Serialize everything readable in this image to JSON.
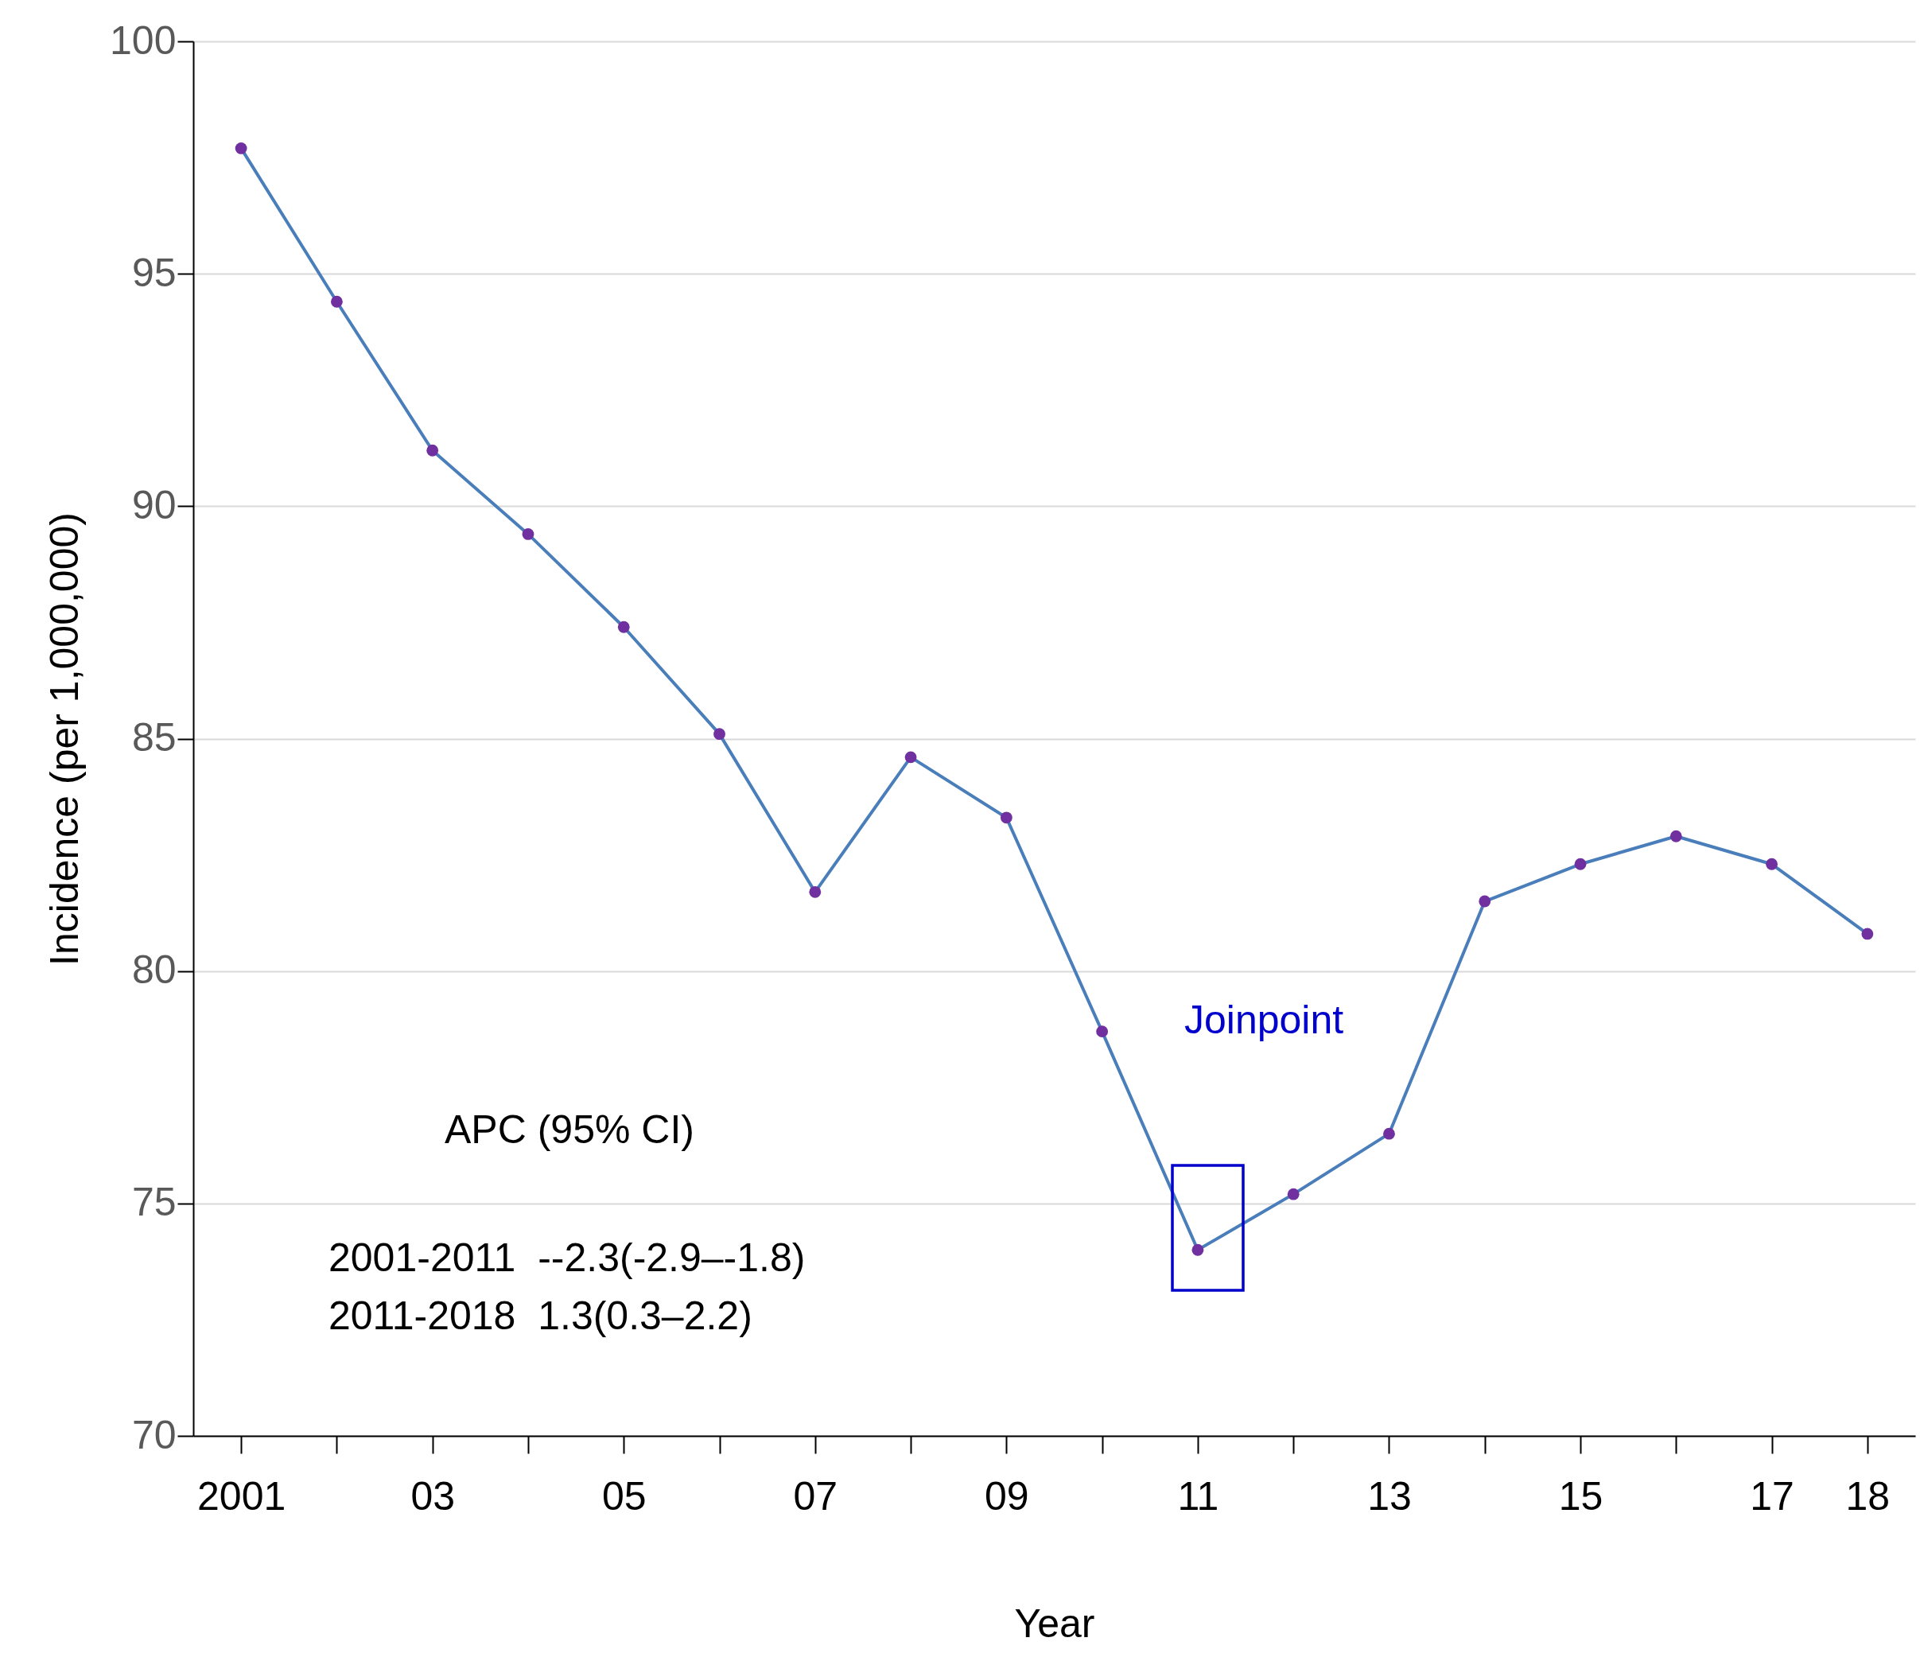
{
  "chart_data": {
    "type": "line",
    "xlabel": "Year",
    "ylabel": "Incidence (per 1,000,000)",
    "categories": [
      "2001",
      null,
      "03",
      null,
      "05",
      null,
      "07",
      null,
      "09",
      null,
      "11",
      null,
      "13",
      null,
      "15",
      null,
      "17",
      "18"
    ],
    "series": [
      {
        "color": "#4a7ebb",
        "colors": [
          "#7030a0",
          "#7030a0",
          "#7030a0",
          "#7030a0",
          "#7030a0",
          "#7030a0",
          "#7030a0",
          "#7030a0",
          "#7030a0",
          "#7030a0",
          "#7030a0",
          "#7030a0",
          "#7030a0",
          "#7030a0",
          "#7030a0",
          "#7030a0",
          "#7030a0",
          "#7030a0"
        ],
        "values": [
          97.7,
          94.4,
          91.2,
          89.4,
          87.4,
          85.1,
          81.7,
          84.6,
          83.3,
          78.7,
          74.0,
          75.2,
          76.5,
          81.5,
          82.3,
          82.9,
          82.3,
          80.8
        ]
      }
    ],
    "ylim": [
      70,
      100
    ],
    "yticks": [
      {
        "value": 70,
        "label": "70"
      },
      {
        "value": 75,
        "label": "75"
      },
      {
        "value": 80,
        "label": "80"
      },
      {
        "value": 85,
        "label": "85"
      },
      {
        "value": 90,
        "label": "90"
      },
      {
        "value": 95,
        "label": "95"
      },
      {
        "value": 100,
        "label": "100"
      }
    ],
    "grid": "y",
    "marker": "circle",
    "line_style": "solid",
    "annotations": [
      "Joinpoint",
      "APC (95% CI)",
      "2001-2011  --2.3(-2.9–-1.8)",
      "2011-2018  1.3(0.3–2.2)"
    ]
  }
}
